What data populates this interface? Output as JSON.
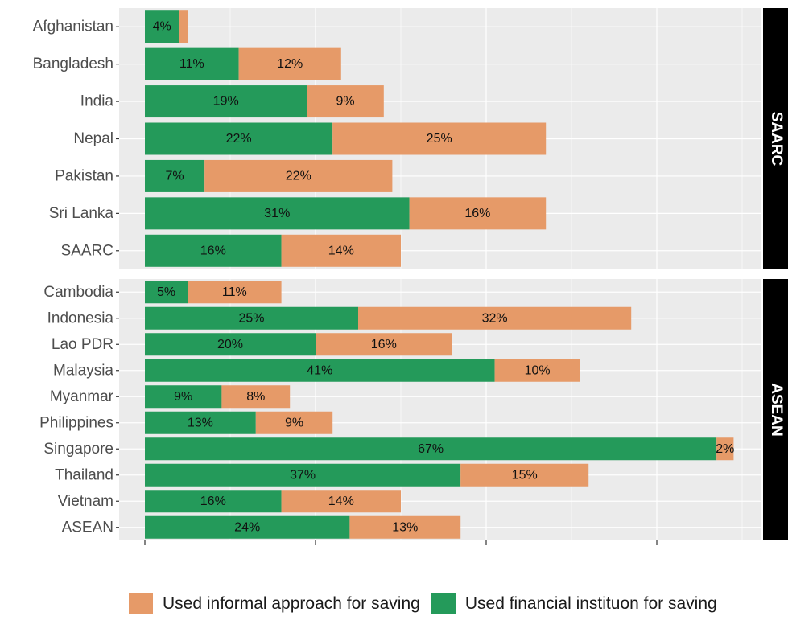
{
  "chart_data": {
    "type": "bar",
    "orientation": "horizontal",
    "stacked": true,
    "x_range": [
      0,
      75
    ],
    "grid": true,
    "legend_position": "bottom",
    "colors": {
      "formal": "#249a5a",
      "informal": "#e69a68",
      "panel_bg": "#ebebeb",
      "strip_bg": "#000000"
    },
    "series": [
      {
        "key": "formal",
        "name": "Used financial instituon for saving"
      },
      {
        "key": "informal",
        "name": "Used informal approach for saving"
      }
    ],
    "panels": [
      {
        "label": "SAARC",
        "categories": [
          "Afghanistan",
          "Bangladesh",
          "India",
          "Nepal",
          "Pakistan",
          "Sri Lanka",
          "SAARC"
        ],
        "formal": [
          4,
          11,
          19,
          22,
          7,
          31,
          16
        ],
        "informal": [
          1,
          12,
          9,
          25,
          22,
          16,
          14
        ],
        "formal_labels": [
          "4%",
          "11%",
          "19%",
          "22%",
          "7%",
          "31%",
          "16%"
        ],
        "informal_labels": [
          "",
          "12%",
          "9%",
          "25%",
          "22%",
          "16%",
          "14%"
        ]
      },
      {
        "label": "ASEAN",
        "categories": [
          "Cambodia",
          "Indonesia",
          "Lao PDR",
          "Malaysia",
          "Myanmar",
          "Philippines",
          "Singapore",
          "Thailand",
          "Vietnam",
          "ASEAN"
        ],
        "formal": [
          5,
          25,
          20,
          41,
          9,
          13,
          67,
          37,
          16,
          24
        ],
        "informal": [
          11,
          32,
          16,
          10,
          8,
          9,
          2,
          15,
          14,
          13
        ],
        "formal_labels": [
          "5%",
          "25%",
          "20%",
          "41%",
          "9%",
          "13%",
          "67%",
          "37%",
          "16%",
          "24%"
        ],
        "informal_labels": [
          "11%",
          "32%",
          "16%",
          "10%",
          "8%",
          "9%",
          "2%",
          "15%",
          "14%",
          "13%"
        ]
      }
    ]
  },
  "legend": [
    {
      "key": "informal",
      "label": "Used informal approach for saving",
      "color": "#e69a68"
    },
    {
      "key": "formal",
      "label": "Used financial instituon for saving",
      "color": "#249a5a"
    }
  ]
}
